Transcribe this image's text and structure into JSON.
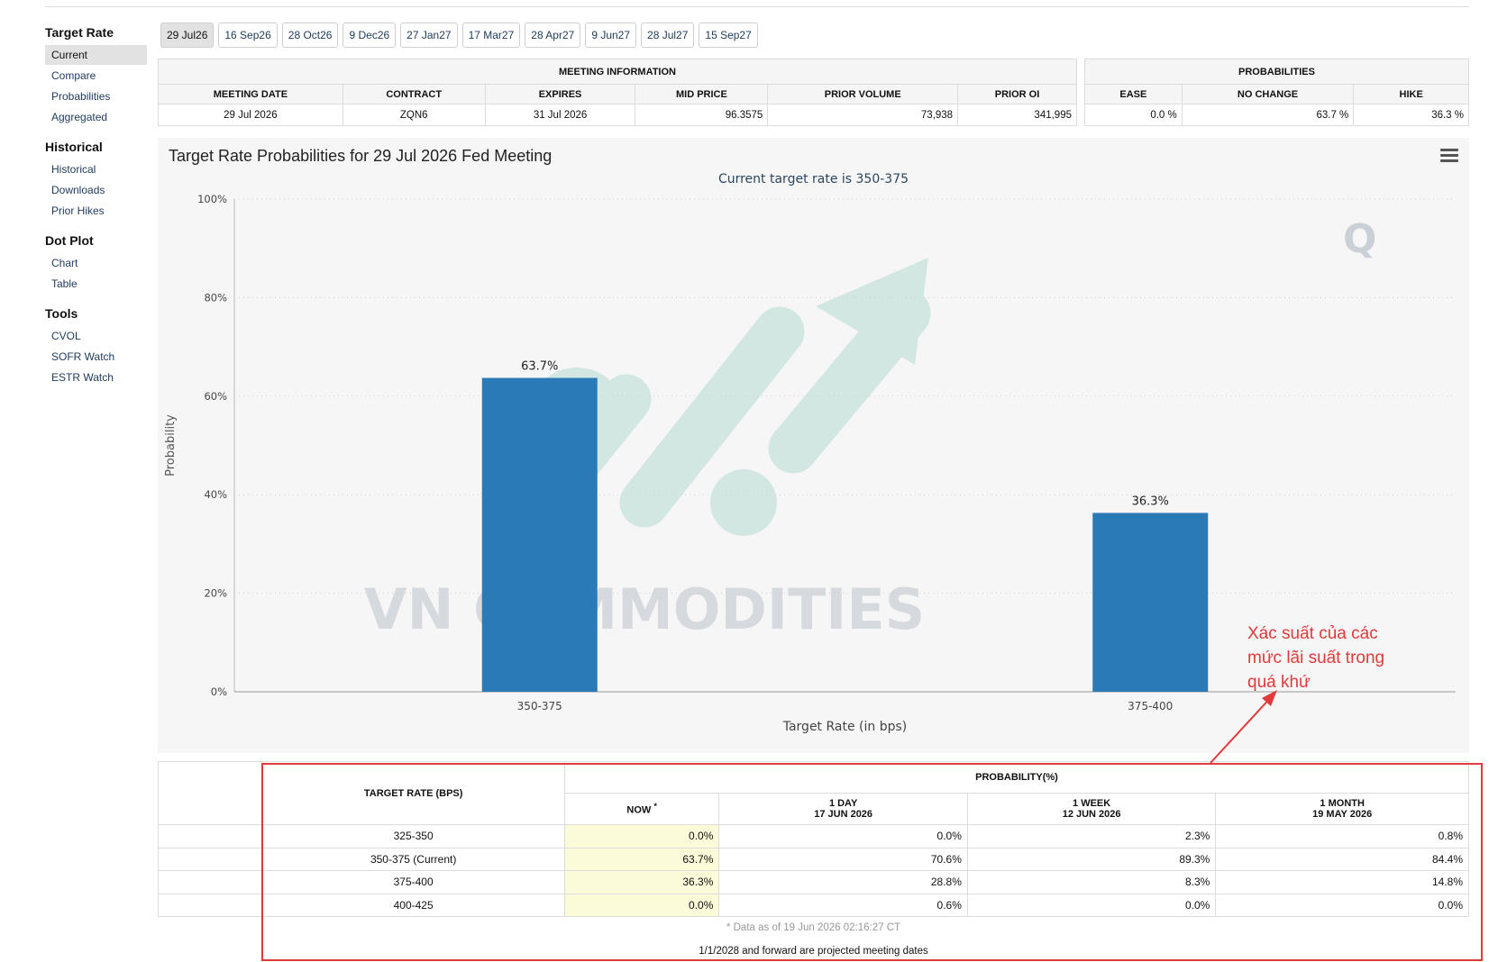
{
  "sidebar": {
    "sections": [
      {
        "title": "Target Rate",
        "items": [
          "Current",
          "Compare",
          "Probabilities",
          "Aggregated"
        ]
      },
      {
        "title": "Historical",
        "items": [
          "Historical",
          "Downloads",
          "Prior Hikes"
        ]
      },
      {
        "title": "Dot Plot",
        "items": [
          "Chart",
          "Table"
        ]
      },
      {
        "title": "Tools",
        "items": [
          "CVOL",
          "SOFR Watch",
          "ESTR Watch"
        ]
      }
    ]
  },
  "tabs": [
    "29 Jul26",
    "16 Sep26",
    "28 Oct26",
    "9 Dec26",
    "27 Jan27",
    "17 Mar27",
    "28 Apr27",
    "9 Jun27",
    "28 Jul27",
    "15 Sep27"
  ],
  "meeting_info": {
    "header": "MEETING INFORMATION",
    "columns": [
      "MEETING DATE",
      "CONTRACT",
      "EXPIRES",
      "MID PRICE",
      "PRIOR VOLUME",
      "PRIOR OI"
    ],
    "row": [
      "29 Jul 2026",
      "ZQN6",
      "31 Jul 2026",
      "96.3575",
      "73,938",
      "341,995"
    ]
  },
  "probabilities": {
    "header": "PROBABILITIES",
    "columns": [
      "EASE",
      "NO CHANGE",
      "HIKE"
    ],
    "row": [
      "0.0 %",
      "63.7 %",
      "36.3 %"
    ]
  },
  "chart": {
    "title": "Target Rate Probabilities for 29 Jul 2026 Fed Meeting",
    "subtitle": "Current target rate is 350-375",
    "watermark": "VN COMMODITIES"
  },
  "chart_data": {
    "type": "bar",
    "title": "Target Rate Probabilities for 29 Jul 2026 Fed Meeting",
    "subtitle": "Current target rate is 350-375",
    "categories": [
      "350-375",
      "375-400"
    ],
    "values": [
      63.7,
      36.3
    ],
    "data_labels": [
      "63.7%",
      "36.3%"
    ],
    "xlabel": "Target Rate (in bps)",
    "ylabel": "Probability",
    "ylim": [
      0,
      100
    ],
    "yticks": [
      "0%",
      "20%",
      "40%",
      "60%",
      "80%",
      "100%"
    ],
    "color": "#2a7ab8",
    "grid": true
  },
  "prob_table": {
    "rate_header": "TARGET RATE (BPS)",
    "prob_header": "PROBABILITY(%)",
    "cols": [
      {
        "l1": "NOW",
        "l2": "",
        "mark": "*"
      },
      {
        "l1": "1 DAY",
        "l2": "17 JUN 2026"
      },
      {
        "l1": "1 WEEK",
        "l2": "12 JUN 2026"
      },
      {
        "l1": "1 MONTH",
        "l2": "19 MAY 2026"
      }
    ],
    "rows": [
      {
        "rate": "325-350",
        "vals": [
          "0.0%",
          "0.0%",
          "2.3%",
          "0.8%"
        ]
      },
      {
        "rate": "350-375 (Current)",
        "vals": [
          "63.7%",
          "70.6%",
          "89.3%",
          "84.4%"
        ]
      },
      {
        "rate": "375-400",
        "vals": [
          "36.3%",
          "28.8%",
          "8.3%",
          "14.8%"
        ]
      },
      {
        "rate": "400-425",
        "vals": [
          "0.0%",
          "0.6%",
          "0.0%",
          "0.0%"
        ]
      }
    ],
    "footnote": "* Data as of 19 Jun 2026 02:16:27 CT",
    "projected_note": "1/1/2028 and forward are projected meeting dates"
  },
  "annotation": "Xác suất của các mức lãi suất trong quá khứ",
  "colors": {
    "accent": "#2a7ab8",
    "annotation": "#e03a3a",
    "now_col": "#fbfbd9"
  }
}
